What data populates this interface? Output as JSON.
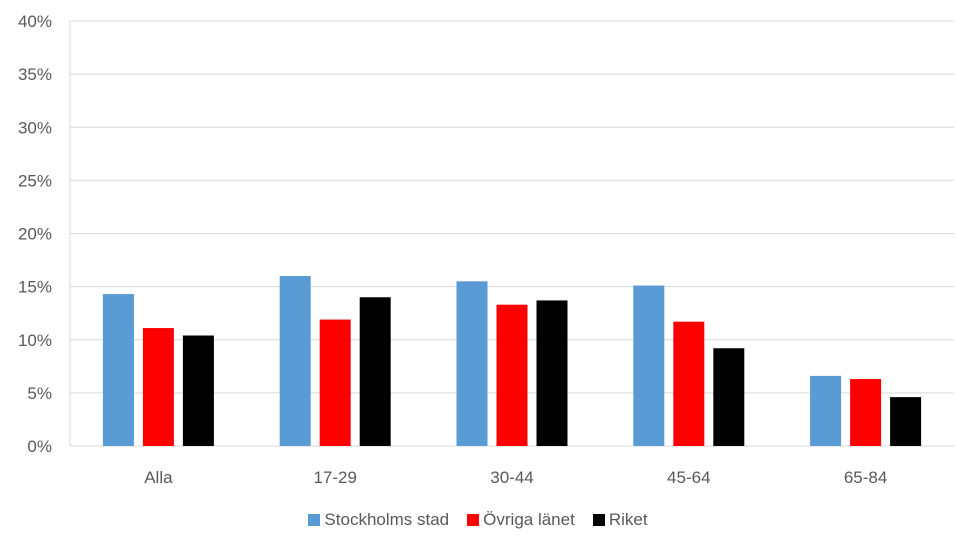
{
  "chart_data": {
    "type": "bar",
    "categories": [
      "Alla",
      "17-29",
      "30-44",
      "45-64",
      "65-84"
    ],
    "series": [
      {
        "name": "Stockholms stad",
        "values": [
          14.3,
          16.0,
          15.5,
          15.1,
          6.6
        ],
        "color": "#5b9bd5"
      },
      {
        "name": "Övriga länet",
        "values": [
          11.1,
          11.9,
          13.3,
          11.7,
          6.3
        ],
        "color": "#ff0000"
      },
      {
        "name": "Riket",
        "values": [
          10.4,
          14.0,
          13.7,
          9.2,
          4.6
        ],
        "color": "#000000"
      }
    ],
    "y_ticks": [
      "0%",
      "5%",
      "10%",
      "15%",
      "20%",
      "25%",
      "30%",
      "35%",
      "40%"
    ],
    "ylim": [
      0,
      40
    ],
    "grid": true,
    "legend_position": "bottom"
  }
}
